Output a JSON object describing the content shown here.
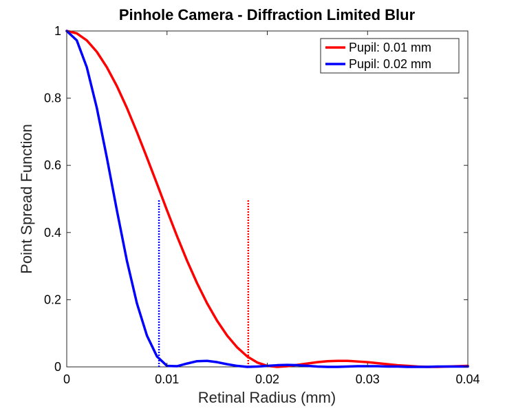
{
  "chart_data": {
    "type": "line",
    "title": "Pinhole Camera - Diffraction Limited Blur",
    "xlabel": "Retinal Radius (mm)",
    "ylabel": "Point Spread Function",
    "xlim": [
      0,
      0.04
    ],
    "ylim": [
      0,
      1
    ],
    "xticks": [
      0,
      0.01,
      0.02,
      0.03,
      0.04
    ],
    "xtick_labels": [
      "0",
      "0.01",
      "0.02",
      "0.03",
      "0.04"
    ],
    "yticks": [
      0,
      0.2,
      0.4,
      0.6,
      0.8,
      1
    ],
    "ytick_labels": [
      "0",
      "0.2",
      "0.4",
      "0.6",
      "0.8",
      "1"
    ],
    "grid": false,
    "legend_position": "top-right",
    "series": [
      {
        "name": "Pupil: 0.01 mm",
        "color": "#ff0000",
        "x": [
          0,
          0.001,
          0.002,
          0.003,
          0.004,
          0.005,
          0.006,
          0.007,
          0.008,
          0.009,
          0.01,
          0.011,
          0.012,
          0.013,
          0.014,
          0.015,
          0.016,
          0.017,
          0.018,
          0.019,
          0.02,
          0.021,
          0.022,
          0.023,
          0.024,
          0.025,
          0.026,
          0.027,
          0.028,
          0.029,
          0.03,
          0.031,
          0.032,
          0.033,
          0.034,
          0.035,
          0.036,
          0.037,
          0.038,
          0.039,
          0.04
        ],
        "values": [
          1.0,
          0.993,
          0.972,
          0.938,
          0.892,
          0.836,
          0.771,
          0.699,
          0.623,
          0.545,
          0.466,
          0.389,
          0.316,
          0.249,
          0.189,
          0.137,
          0.093,
          0.058,
          0.031,
          0.013,
          0.003,
          0.0,
          0.002,
          0.006,
          0.01,
          0.014,
          0.017,
          0.018,
          0.018,
          0.016,
          0.014,
          0.011,
          0.008,
          0.005,
          0.003,
          0.001,
          0.0,
          0.0,
          0.001,
          0.002,
          0.003
        ]
      },
      {
        "name": "Pupil: 0.02 mm",
        "color": "#0000ff",
        "x": [
          0,
          0.001,
          0.002,
          0.003,
          0.004,
          0.005,
          0.006,
          0.007,
          0.008,
          0.009,
          0.01,
          0.011,
          0.012,
          0.013,
          0.014,
          0.015,
          0.016,
          0.017,
          0.018,
          0.019,
          0.02,
          0.021,
          0.022,
          0.023,
          0.024,
          0.025,
          0.026,
          0.027,
          0.028,
          0.029,
          0.03,
          0.031,
          0.032,
          0.033,
          0.034,
          0.035,
          0.036,
          0.037,
          0.038,
          0.039,
          0.04
        ],
        "values": [
          1.0,
          0.972,
          0.892,
          0.771,
          0.623,
          0.466,
          0.316,
          0.189,
          0.093,
          0.031,
          0.003,
          0.002,
          0.01,
          0.017,
          0.018,
          0.014,
          0.008,
          0.003,
          0.0,
          0.001,
          0.003,
          0.005,
          0.006,
          0.005,
          0.003,
          0.001,
          0.0,
          0.0,
          0.001,
          0.002,
          0.002,
          0.002,
          0.001,
          0.001,
          0.0,
          0.0,
          0.0,
          0.001,
          0.001,
          0.001,
          0.001
        ]
      }
    ],
    "markers": [
      {
        "series": "Pupil: 0.02 mm",
        "x": 0.0092,
        "y_from": 0,
        "y_to": 0.5,
        "color": "#0000ff",
        "style": "dotted"
      },
      {
        "series": "Pupil: 0.01 mm",
        "x": 0.0181,
        "y_from": 0,
        "y_to": 0.5,
        "color": "#ff0000",
        "style": "dotted"
      }
    ]
  }
}
